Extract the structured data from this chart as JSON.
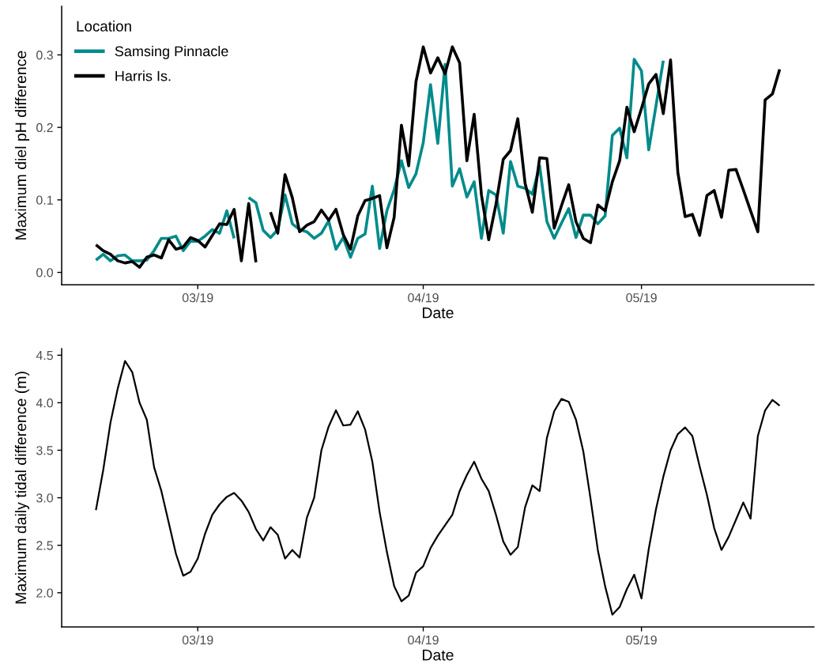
{
  "chart_data": [
    {
      "type": "line",
      "xlabel": "Date",
      "ylabel": "Maximum diel pH difference",
      "legend_title": "Location",
      "legend": "top left",
      "grid": false,
      "marker": "none",
      "line_style": "solid",
      "x": [
        "2019-02-15",
        "2019-02-16",
        "2019-02-17",
        "2019-02-18",
        "2019-02-19",
        "2019-02-20",
        "2019-02-21",
        "2019-02-22",
        "2019-02-23",
        "2019-02-24",
        "2019-02-25",
        "2019-02-26",
        "2019-02-27",
        "2019-02-28",
        "2019-03-01",
        "2019-03-02",
        "2019-03-03",
        "2019-03-04",
        "2019-03-05",
        "2019-03-06",
        "2019-03-07",
        "2019-03-08",
        "2019-03-09",
        "2019-03-10",
        "2019-03-11",
        "2019-03-12",
        "2019-03-13",
        "2019-03-14",
        "2019-03-15",
        "2019-03-16",
        "2019-03-17",
        "2019-03-18",
        "2019-03-19",
        "2019-03-20",
        "2019-03-21",
        "2019-03-22",
        "2019-03-23",
        "2019-03-24",
        "2019-03-25",
        "2019-03-26",
        "2019-03-27",
        "2019-03-28",
        "2019-03-29",
        "2019-03-30",
        "2019-03-31",
        "2019-04-01",
        "2019-04-02",
        "2019-04-03",
        "2019-04-04",
        "2019-04-05",
        "2019-04-06",
        "2019-04-07",
        "2019-04-08",
        "2019-04-09",
        "2019-04-10",
        "2019-04-11",
        "2019-04-12",
        "2019-04-13",
        "2019-04-14",
        "2019-04-15",
        "2019-04-16",
        "2019-04-17",
        "2019-04-18",
        "2019-04-19",
        "2019-04-20",
        "2019-04-21",
        "2019-04-22",
        "2019-04-23",
        "2019-04-24",
        "2019-04-25",
        "2019-04-26",
        "2019-04-27",
        "2019-04-28",
        "2019-04-29",
        "2019-04-30",
        "2019-05-01",
        "2019-05-02",
        "2019-05-03",
        "2019-05-04",
        "2019-05-05",
        "2019-05-06",
        "2019-05-07",
        "2019-05-08",
        "2019-05-09",
        "2019-05-10",
        "2019-05-11",
        "2019-05-12",
        "2019-05-13",
        "2019-05-14",
        "2019-05-15",
        "2019-05-16",
        "2019-05-17",
        "2019-05-18",
        "2019-05-19",
        "2019-05-20"
      ],
      "series": [
        {
          "name": "Samsing Pinnacle",
          "color": "#008b8b",
          "values": [
            0.017,
            0.025,
            0.016,
            0.023,
            0.024,
            0.016,
            0.016,
            0.017,
            0.03,
            0.047,
            0.047,
            0.05,
            0.03,
            0.043,
            0.043,
            0.05,
            0.059,
            0.054,
            0.085,
            0.047,
            null,
            0.103,
            0.096,
            0.058,
            0.048,
            0.059,
            0.107,
            0.067,
            0.059,
            0.056,
            0.047,
            0.054,
            0.071,
            0.032,
            0.048,
            0.021,
            0.047,
            0.053,
            0.119,
            0.033,
            0.085,
            0.114,
            0.154,
            0.117,
            0.136,
            0.179,
            0.259,
            0.178,
            0.287,
            0.119,
            0.143,
            0.104,
            0.125,
            0.047,
            0.113,
            0.107,
            0.054,
            0.153,
            0.119,
            0.116,
            0.108,
            0.147,
            0.07,
            0.047,
            0.068,
            0.088,
            0.048,
            0.079,
            0.079,
            0.067,
            0.078,
            0.189,
            0.199,
            0.158,
            0.294,
            0.278,
            0.169,
            0.23,
            0.292,
            null,
            null,
            null,
            null,
            null,
            null,
            null,
            null,
            null,
            null,
            null,
            null,
            null,
            null,
            null,
            null
          ]
        },
        {
          "name": "Harris Is.",
          "color": "#000000",
          "values": [
            0.038,
            0.03,
            0.025,
            0.016,
            0.013,
            0.015,
            0.007,
            0.021,
            0.024,
            0.02,
            0.045,
            0.032,
            0.035,
            0.048,
            0.044,
            0.035,
            0.051,
            0.067,
            0.066,
            0.087,
            0.016,
            0.095,
            0.014,
            null,
            0.083,
            0.054,
            0.135,
            0.103,
            0.056,
            0.065,
            0.07,
            0.086,
            0.072,
            0.087,
            0.052,
            0.032,
            0.078,
            0.099,
            0.102,
            0.106,
            0.034,
            0.076,
            0.203,
            0.147,
            0.263,
            0.311,
            0.275,
            0.296,
            0.274,
            0.311,
            0.289,
            0.154,
            0.218,
            0.107,
            0.045,
            0.094,
            0.156,
            0.168,
            0.212,
            0.123,
            0.083,
            0.158,
            0.157,
            0.061,
            0.092,
            0.121,
            0.07,
            0.047,
            0.041,
            0.093,
            0.085,
            0.125,
            0.154,
            0.228,
            0.194,
            0.226,
            0.26,
            0.273,
            0.219,
            0.293,
            0.138,
            0.077,
            0.08,
            0.051,
            0.106,
            0.113,
            0.076,
            0.141,
            0.142,
            0.114,
            0.085,
            0.056,
            0.238,
            0.246,
            0.28
          ]
        }
      ],
      "xlim": [
        "2019-02-10T07:00",
        "2019-05-24T17:00"
      ],
      "xticks": [
        {
          "value": "2019-03-01",
          "label": "03/19"
        },
        {
          "value": "2019-04-01",
          "label": "04/19"
        },
        {
          "value": "2019-05-01",
          "label": "05/19"
        }
      ],
      "ylim": [
        -0.017,
        0.367
      ],
      "yticks": [
        {
          "value": 0,
          "label": "0.0"
        },
        0.1,
        0.2,
        0.3
      ]
    },
    {
      "type": "line",
      "xlabel": "Date",
      "ylabel": "Maximum daily tidal difference (m)",
      "grid": false,
      "marker": "none",
      "line_style": "solid",
      "x": [
        "2019-02-15",
        "2019-02-16",
        "2019-02-17",
        "2019-02-18",
        "2019-02-19",
        "2019-02-20",
        "2019-02-21",
        "2019-02-22",
        "2019-02-23",
        "2019-02-24",
        "2019-02-25",
        "2019-02-26",
        "2019-02-27",
        "2019-02-28",
        "2019-03-01",
        "2019-03-02",
        "2019-03-03",
        "2019-03-04",
        "2019-03-05",
        "2019-03-06",
        "2019-03-07",
        "2019-03-08",
        "2019-03-09",
        "2019-03-10",
        "2019-03-11",
        "2019-03-12",
        "2019-03-13",
        "2019-03-14",
        "2019-03-15",
        "2019-03-16",
        "2019-03-17",
        "2019-03-18",
        "2019-03-19",
        "2019-03-20",
        "2019-03-21",
        "2019-03-22",
        "2019-03-23",
        "2019-03-24",
        "2019-03-25",
        "2019-03-26",
        "2019-03-27",
        "2019-03-28",
        "2019-03-29",
        "2019-03-30",
        "2019-03-31",
        "2019-04-01",
        "2019-04-02",
        "2019-04-03",
        "2019-04-04",
        "2019-04-05",
        "2019-04-06",
        "2019-04-07",
        "2019-04-08",
        "2019-04-09",
        "2019-04-10",
        "2019-04-11",
        "2019-04-12",
        "2019-04-13",
        "2019-04-14",
        "2019-04-15",
        "2019-04-16",
        "2019-04-17",
        "2019-04-18",
        "2019-04-19",
        "2019-04-20",
        "2019-04-21",
        "2019-04-22",
        "2019-04-23",
        "2019-04-24",
        "2019-04-25",
        "2019-04-26",
        "2019-04-27",
        "2019-04-28",
        "2019-04-29",
        "2019-04-30",
        "2019-05-01",
        "2019-05-02",
        "2019-05-03",
        "2019-05-04",
        "2019-05-05",
        "2019-05-06",
        "2019-05-07",
        "2019-05-08",
        "2019-05-09",
        "2019-05-10",
        "2019-05-11",
        "2019-05-12",
        "2019-05-13",
        "2019-05-14",
        "2019-05-15",
        "2019-05-16",
        "2019-05-17",
        "2019-05-18",
        "2019-05-19",
        "2019-05-20"
      ],
      "series": [
        {
          "color": "#000000",
          "values": [
            2.87,
            3.29,
            3.79,
            4.15,
            4.44,
            4.32,
            4.0,
            3.82,
            3.32,
            3.07,
            2.74,
            2.41,
            2.18,
            2.22,
            2.36,
            2.62,
            2.82,
            2.93,
            3.01,
            3.05,
            2.97,
            2.85,
            2.67,
            2.55,
            2.69,
            2.61,
            2.36,
            2.45,
            2.37,
            2.79,
            3.0,
            3.5,
            3.75,
            3.92,
            3.76,
            3.77,
            3.91,
            3.72,
            3.38,
            2.85,
            2.43,
            2.07,
            1.91,
            1.97,
            2.21,
            2.28,
            2.47,
            2.6,
            2.71,
            2.82,
            3.07,
            3.24,
            3.38,
            3.2,
            3.07,
            2.82,
            2.54,
            2.4,
            2.48,
            2.9,
            3.13,
            3.07,
            3.63,
            3.91,
            4.04,
            4.01,
            3.82,
            3.49,
            2.99,
            2.45,
            2.07,
            1.77,
            1.85,
            2.04,
            2.19,
            1.94,
            2.46,
            2.88,
            3.22,
            3.5,
            3.67,
            3.74,
            3.65,
            3.33,
            3.03,
            2.68,
            2.45,
            2.59,
            2.77,
            2.95,
            2.78,
            3.65,
            3.92,
            4.03,
            3.97
          ]
        }
      ],
      "xlim": [
        "2019-02-10T07:00",
        "2019-05-24T17:00"
      ],
      "xticks": [
        {
          "value": "2019-03-01",
          "label": "03/19"
        },
        {
          "value": "2019-04-01",
          "label": "04/19"
        },
        {
          "value": "2019-05-01",
          "label": "05/19"
        }
      ],
      "ylim": [
        1.64,
        4.57
      ],
      "yticks": [
        {
          "value": 2,
          "label": "2.0"
        },
        2.5,
        {
          "value": 3,
          "label": "3.0"
        },
        3.5,
        {
          "value": 4,
          "label": "4.0"
        },
        4.5
      ]
    }
  ]
}
